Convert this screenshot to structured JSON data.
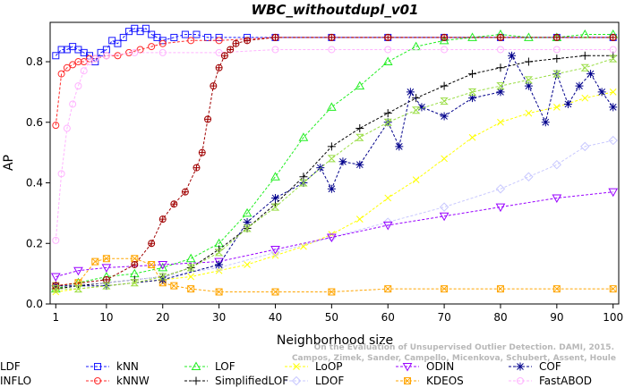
{
  "watermark": {
    "line1": "Campos, Zimek, Sander, Campello, Micenkova, Schubert, Assent, Houle",
    "line2": "On the Evaluation of Unsupervised Outlier Detection. DAMI, 2015."
  },
  "chart_data": {
    "type": "line",
    "title": "WBC_withoutdupl_v01",
    "xlabel": "Neighborhood size",
    "ylabel": "AP",
    "xlim": [
      0,
      101
    ],
    "ylim": [
      0,
      0.93
    ],
    "xticks": [
      1,
      10,
      20,
      30,
      40,
      50,
      60,
      70,
      80,
      90,
      100
    ],
    "yticks": [
      0.0,
      0.2,
      0.4,
      0.6,
      0.8
    ],
    "ytick_labels": [
      "0.0",
      "0.2",
      "0.4",
      "0.6",
      "0.8"
    ],
    "grid": false,
    "legend_position": "bottom",
    "series": [
      {
        "name": "kNN",
        "color": "#1a1aff",
        "marker": "square",
        "x": [
          1,
          2,
          3,
          4,
          5,
          6,
          7,
          8,
          9,
          10,
          11,
          12,
          13,
          14,
          15,
          16,
          17,
          18,
          19,
          20,
          22,
          24,
          26,
          28,
          30,
          35,
          40,
          50,
          60,
          70,
          80,
          90,
          100
        ],
        "y": [
          0.82,
          0.84,
          0.84,
          0.85,
          0.84,
          0.83,
          0.82,
          0.8,
          0.83,
          0.84,
          0.87,
          0.86,
          0.88,
          0.9,
          0.91,
          0.9,
          0.91,
          0.89,
          0.88,
          0.87,
          0.88,
          0.89,
          0.89,
          0.88,
          0.88,
          0.88,
          0.88,
          0.88,
          0.88,
          0.88,
          0.88,
          0.88,
          0.88
        ]
      },
      {
        "name": "kNNW",
        "color": "#ff2a2a",
        "marker": "circle",
        "x": [
          1,
          2,
          3,
          4,
          5,
          6,
          7,
          8,
          10,
          12,
          14,
          16,
          18,
          20,
          25,
          30,
          40,
          50,
          60,
          70,
          80,
          90,
          100
        ],
        "y": [
          0.59,
          0.76,
          0.78,
          0.79,
          0.8,
          0.8,
          0.81,
          0.81,
          0.82,
          0.82,
          0.83,
          0.84,
          0.85,
          0.86,
          0.87,
          0.87,
          0.88,
          0.88,
          0.88,
          0.88,
          0.88,
          0.88,
          0.88
        ]
      },
      {
        "name": "LOF",
        "color": "#22ee22",
        "marker": "triangle",
        "x": [
          1,
          5,
          10,
          15,
          20,
          25,
          30,
          35,
          40,
          45,
          50,
          55,
          60,
          65,
          70,
          75,
          80,
          85,
          90,
          95,
          100
        ],
        "y": [
          0.05,
          0.07,
          0.09,
          0.1,
          0.12,
          0.15,
          0.2,
          0.3,
          0.42,
          0.55,
          0.65,
          0.72,
          0.8,
          0.85,
          0.87,
          0.88,
          0.89,
          0.88,
          0.88,
          0.89,
          0.89
        ]
      },
      {
        "name": "SimplifiedLOF",
        "color": "#000000",
        "marker": "plus",
        "x": [
          1,
          5,
          10,
          15,
          20,
          25,
          30,
          35,
          40,
          45,
          50,
          55,
          60,
          65,
          70,
          75,
          80,
          85,
          90,
          95,
          100
        ],
        "y": [
          0.05,
          0.06,
          0.07,
          0.08,
          0.09,
          0.12,
          0.18,
          0.25,
          0.33,
          0.42,
          0.52,
          0.58,
          0.63,
          0.68,
          0.72,
          0.76,
          0.78,
          0.8,
          0.81,
          0.82,
          0.82
        ]
      },
      {
        "name": "LoOP",
        "color": "#ffff00",
        "marker": "x",
        "x": [
          1,
          5,
          10,
          15,
          20,
          25,
          30,
          35,
          40,
          45,
          50,
          55,
          60,
          65,
          70,
          75,
          80,
          85,
          90,
          95,
          100
        ],
        "y": [
          0.04,
          0.05,
          0.06,
          0.07,
          0.08,
          0.09,
          0.11,
          0.13,
          0.16,
          0.19,
          0.23,
          0.28,
          0.35,
          0.41,
          0.48,
          0.55,
          0.6,
          0.63,
          0.65,
          0.68,
          0.7
        ]
      },
      {
        "name": "LDOF",
        "color": "#c8c8ff",
        "marker": "diamond",
        "x": [
          1,
          10,
          20,
          30,
          40,
          50,
          60,
          70,
          80,
          85,
          90,
          95,
          100
        ],
        "y": [
          0.06,
          0.07,
          0.09,
          0.12,
          0.17,
          0.22,
          0.27,
          0.32,
          0.38,
          0.42,
          0.46,
          0.52,
          0.54
        ]
      },
      {
        "name": "ODIN",
        "color": "#9900ff",
        "marker": "triangle-down",
        "x": [
          1,
          5,
          10,
          20,
          30,
          40,
          50,
          60,
          70,
          80,
          90,
          100
        ],
        "y": [
          0.09,
          0.11,
          0.12,
          0.13,
          0.14,
          0.18,
          0.22,
          0.26,
          0.29,
          0.32,
          0.35,
          0.37
        ]
      },
      {
        "name": "KDEOS",
        "color": "#ffa500",
        "marker": "square-x",
        "x": [
          1,
          5,
          8,
          10,
          15,
          18,
          20,
          22,
          25,
          30,
          40,
          50,
          60,
          70,
          80,
          90,
          100
        ],
        "y": [
          0.06,
          0.07,
          0.14,
          0.15,
          0.15,
          0.13,
          0.07,
          0.06,
          0.05,
          0.04,
          0.04,
          0.04,
          0.05,
          0.05,
          0.05,
          0.05,
          0.05
        ]
      },
      {
        "name": "COF",
        "color": "#00008b",
        "marker": "asterisk",
        "x": [
          1,
          10,
          20,
          30,
          35,
          40,
          45,
          48,
          50,
          52,
          55,
          60,
          62,
          64,
          66,
          70,
          75,
          80,
          82,
          85,
          88,
          90,
          92,
          94,
          96,
          98,
          100
        ],
        "y": [
          0.06,
          0.06,
          0.08,
          0.13,
          0.27,
          0.35,
          0.4,
          0.45,
          0.38,
          0.47,
          0.46,
          0.6,
          0.52,
          0.7,
          0.65,
          0.62,
          0.68,
          0.7,
          0.82,
          0.72,
          0.6,
          0.76,
          0.66,
          0.72,
          0.76,
          0.7,
          0.65
        ]
      },
      {
        "name": "FastABOD",
        "color": "#ffb3ff",
        "marker": "circle",
        "x": [
          1,
          2,
          3,
          4,
          5,
          6,
          7,
          8,
          10,
          15,
          20,
          30,
          40,
          50,
          60,
          70,
          80,
          90,
          100
        ],
        "y": [
          0.21,
          0.43,
          0.58,
          0.66,
          0.72,
          0.77,
          0.8,
          0.81,
          0.82,
          0.83,
          0.83,
          0.83,
          0.84,
          0.84,
          0.84,
          0.84,
          0.84,
          0.84,
          0.84
        ]
      },
      {
        "name": "LDF",
        "color": "#a00000",
        "marker": "circle-plus",
        "x": [
          1,
          10,
          15,
          18,
          20,
          22,
          24,
          26,
          27,
          28,
          29,
          30,
          31,
          32,
          33,
          35,
          40,
          50,
          60,
          70,
          80,
          90,
          100
        ],
        "y": [
          0.06,
          0.08,
          0.13,
          0.2,
          0.28,
          0.33,
          0.37,
          0.45,
          0.5,
          0.61,
          0.72,
          0.78,
          0.82,
          0.84,
          0.86,
          0.87,
          0.88,
          0.88,
          0.88,
          0.88,
          0.88,
          0.88,
          0.88
        ]
      },
      {
        "name": "INFLO",
        "color": "#99dd44",
        "marker": "hourglass",
        "x": [
          1,
          5,
          10,
          15,
          20,
          25,
          30,
          35,
          40,
          45,
          50,
          55,
          60,
          65,
          70,
          75,
          80,
          85,
          90,
          95,
          100
        ],
        "y": [
          0.05,
          0.05,
          0.06,
          0.07,
          0.09,
          0.12,
          0.17,
          0.25,
          0.32,
          0.4,
          0.48,
          0.55,
          0.6,
          0.64,
          0.67,
          0.7,
          0.72,
          0.74,
          0.76,
          0.78,
          0.81
        ]
      }
    ]
  }
}
